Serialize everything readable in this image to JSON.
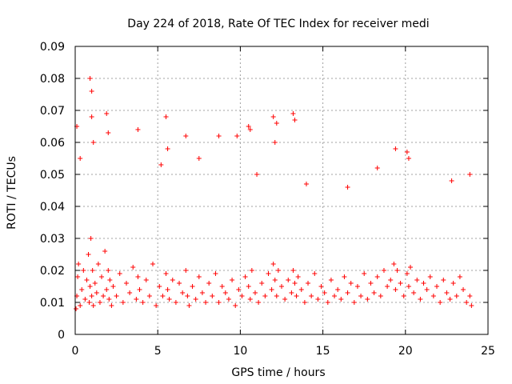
{
  "chart_data": {
    "type": "scatter",
    "title": "Day 224 of 2018, Rate Of TEC Index for receiver medi",
    "xlabel": "GPS time / hours",
    "ylabel": "ROTI / TECUs",
    "xlim": [
      0,
      25
    ],
    "ylim": [
      0,
      0.09
    ],
    "x_ticks": [
      0,
      5,
      10,
      15,
      20,
      25
    ],
    "x_tick_labels": [
      "0",
      "5",
      "10",
      "15",
      "20",
      "25"
    ],
    "y_ticks": [
      0,
      0.01,
      0.02,
      0.03,
      0.04,
      0.05,
      0.06,
      0.07,
      0.08,
      0.09
    ],
    "y_tick_labels": [
      "0",
      "0.01",
      "0.02",
      "0.03",
      "0.04",
      "0.05",
      "0.06",
      "0.07",
      "0.08",
      "0.09"
    ],
    "grid": true,
    "marker": "+",
    "color": "#ff0000",
    "series": [
      {
        "name": "ROTI",
        "x": [
          0.05,
          0.1,
          0.15,
          0.2,
          0.3,
          0.4,
          0.5,
          0.6,
          0.7,
          0.8,
          0.85,
          0.9,
          0.95,
          1.0,
          1.05,
          1.1,
          1.2,
          1.3,
          1.4,
          1.5,
          1.6,
          1.7,
          1.8,
          1.9,
          2.0,
          2.05,
          2.1,
          2.2,
          2.3,
          2.5,
          2.7,
          2.9,
          3.1,
          3.3,
          3.5,
          3.7,
          3.8,
          3.9,
          4.1,
          4.3,
          4.5,
          4.7,
          4.9,
          5.1,
          5.3,
          5.5,
          5.6,
          5.7,
          5.9,
          6.1,
          6.3,
          6.5,
          6.7,
          6.8,
          6.9,
          7.1,
          7.3,
          7.5,
          7.7,
          7.9,
          8.1,
          8.3,
          8.5,
          8.7,
          8.9,
          9.1,
          9.3,
          9.5,
          9.7,
          9.9,
          10.1,
          10.3,
          10.5,
          10.6,
          10.7,
          10.9,
          11.1,
          11.3,
          11.5,
          11.7,
          11.9,
          12.0,
          12.1,
          12.2,
          12.3,
          12.5,
          12.7,
          12.9,
          13.1,
          13.2,
          13.3,
          13.4,
          13.5,
          13.7,
          13.9,
          14.1,
          14.3,
          14.5,
          14.7,
          14.9,
          15.1,
          15.3,
          15.5,
          15.7,
          15.9,
          16.1,
          16.3,
          16.5,
          16.7,
          16.9,
          17.1,
          17.3,
          17.5,
          17.7,
          17.9,
          18.1,
          18.3,
          18.5,
          18.7,
          18.9,
          19.1,
          19.3,
          19.4,
          19.5,
          19.7,
          19.9,
          20.1,
          20.2,
          20.3,
          20.5,
          20.7,
          20.9,
          21.1,
          21.3,
          21.5,
          21.7,
          21.9,
          22.1,
          22.3,
          22.5,
          22.7,
          22.9,
          23.1,
          23.3,
          23.5,
          23.7,
          23.9,
          24.0,
          0.1,
          0.3,
          0.9,
          1.0,
          1.0,
          1.1,
          1.9,
          2.0,
          5.5,
          5.6,
          6.7,
          8.7,
          9.8,
          10.5,
          10.6,
          12.0,
          12.1,
          12.2,
          13.2,
          13.3,
          19.4,
          20.1,
          20.2,
          3.8,
          5.2,
          7.5,
          11.0,
          14.0,
          16.5,
          18.3,
          22.8,
          23.9
        ],
        "y": [
          0.008,
          0.012,
          0.018,
          0.022,
          0.009,
          0.014,
          0.02,
          0.011,
          0.017,
          0.025,
          0.01,
          0.015,
          0.03,
          0.012,
          0.02,
          0.009,
          0.016,
          0.013,
          0.022,
          0.01,
          0.018,
          0.012,
          0.026,
          0.014,
          0.02,
          0.011,
          0.017,
          0.009,
          0.015,
          0.012,
          0.019,
          0.01,
          0.016,
          0.013,
          0.021,
          0.011,
          0.018,
          0.014,
          0.01,
          0.017,
          0.012,
          0.022,
          0.009,
          0.015,
          0.012,
          0.019,
          0.014,
          0.011,
          0.017,
          0.01,
          0.016,
          0.013,
          0.02,
          0.012,
          0.009,
          0.015,
          0.011,
          0.018,
          0.013,
          0.01,
          0.016,
          0.012,
          0.019,
          0.01,
          0.015,
          0.013,
          0.011,
          0.017,
          0.009,
          0.014,
          0.012,
          0.018,
          0.015,
          0.011,
          0.02,
          0.013,
          0.01,
          0.016,
          0.012,
          0.019,
          0.014,
          0.022,
          0.017,
          0.012,
          0.02,
          0.015,
          0.011,
          0.017,
          0.013,
          0.02,
          0.016,
          0.012,
          0.018,
          0.014,
          0.01,
          0.016,
          0.012,
          0.019,
          0.011,
          0.015,
          0.013,
          0.01,
          0.017,
          0.012,
          0.014,
          0.011,
          0.018,
          0.013,
          0.016,
          0.01,
          0.015,
          0.012,
          0.019,
          0.011,
          0.016,
          0.013,
          0.018,
          0.012,
          0.02,
          0.015,
          0.017,
          0.022,
          0.014,
          0.02,
          0.016,
          0.012,
          0.019,
          0.015,
          0.021,
          0.013,
          0.017,
          0.011,
          0.016,
          0.014,
          0.018,
          0.012,
          0.015,
          0.01,
          0.017,
          0.013,
          0.011,
          0.016,
          0.012,
          0.018,
          0.014,
          0.01,
          0.012,
          0.009,
          0.065,
          0.055,
          0.08,
          0.076,
          0.068,
          0.06,
          0.069,
          0.063,
          0.068,
          0.058,
          0.062,
          0.062,
          0.062,
          0.065,
          0.064,
          0.068,
          0.06,
          0.066,
          0.069,
          0.067,
          0.058,
          0.057,
          0.055,
          0.064,
          0.053,
          0.055,
          0.05,
          0.047,
          0.046,
          0.052,
          0.048,
          0.05
        ]
      }
    ]
  }
}
